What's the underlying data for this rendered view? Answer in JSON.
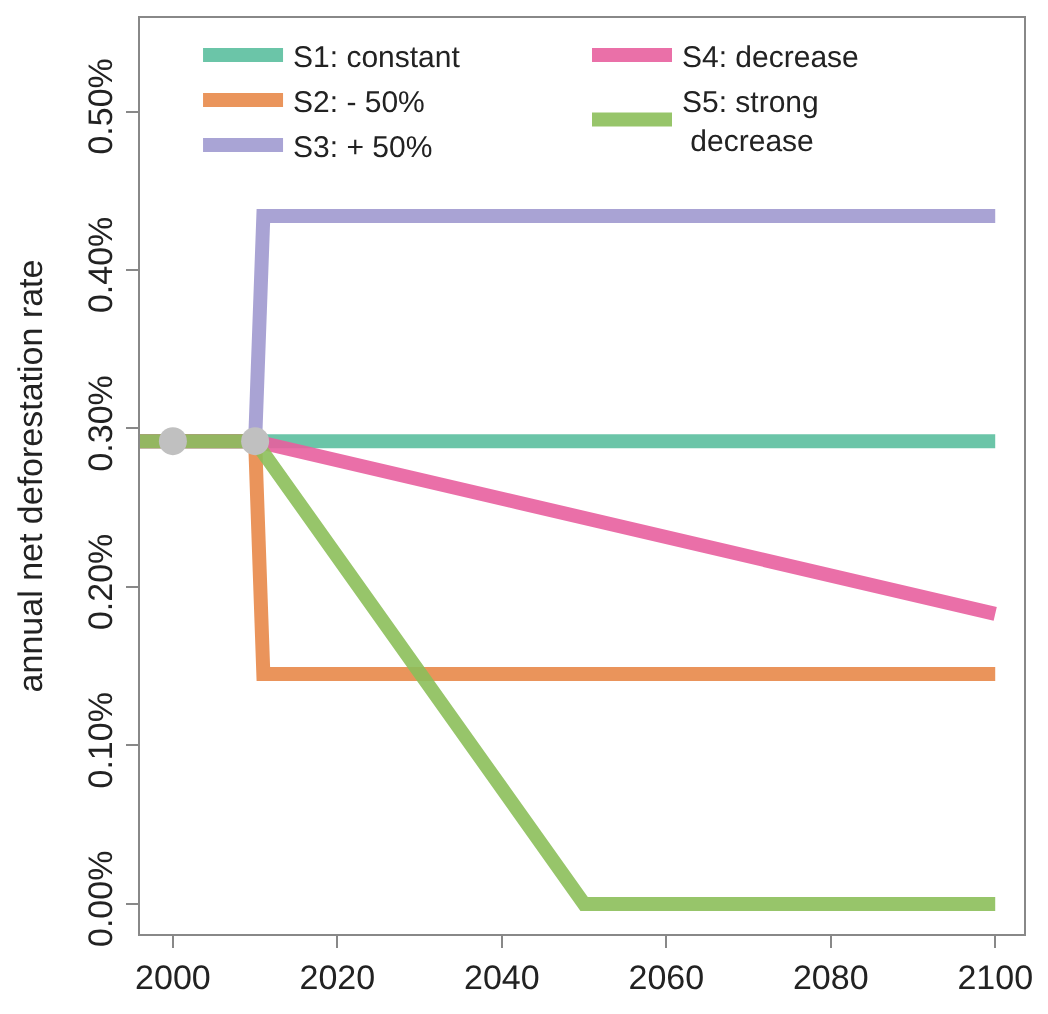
{
  "chart_data": {
    "type": "line",
    "ylabel": "annual net deforestation rate",
    "xlim": [
      1996,
      2103.5
    ],
    "xticks": [
      2000,
      2020,
      2040,
      2060,
      2080,
      2100
    ],
    "ylim": [
      -0.019,
      0.559
    ],
    "yticks": [
      {
        "value": 0,
        "label": "0.00%"
      },
      {
        "value": 0.1,
        "label": "0.10%"
      },
      {
        "value": 0.2,
        "label": "0.20%"
      },
      {
        "value": 0.3,
        "label": "0.30%"
      },
      {
        "value": 0.4,
        "label": "0.40%"
      },
      {
        "value": 0.5,
        "label": "0.50%"
      }
    ],
    "legend": "top",
    "line_style": "solid",
    "series": [
      {
        "name": "S1: constant",
        "color": "#5bbf9f",
        "x": [
          1996,
          2010,
          2100
        ],
        "values": [
          0.292,
          0.292,
          0.292
        ]
      },
      {
        "name": "S2: - 50%",
        "color": "#e8894a",
        "x": [
          1996,
          2010,
          2011,
          2100
        ],
        "values": [
          0.292,
          0.292,
          0.145,
          0.145
        ]
      },
      {
        "name": "S3: + 50%",
        "color": "#a09ad0",
        "x": [
          1996,
          2010,
          2011,
          2100
        ],
        "values": [
          0.292,
          0.292,
          0.434,
          0.434
        ]
      },
      {
        "name": "S4: decrease",
        "color": "#e8609f",
        "x": [
          1996,
          2010,
          2100
        ],
        "values": [
          0.292,
          0.292,
          0.183
        ]
      },
      {
        "name": "S5: strong\n decrease",
        "color": "#8cbf5a",
        "x": [
          1996,
          2010,
          2050,
          2100
        ],
        "values": [
          0.292,
          0.292,
          0,
          0
        ]
      },
      {
        "type": "scatter",
        "marker": "circle",
        "color": "#c0c0c0",
        "x": [
          2000,
          2010
        ],
        "values": [
          0.292,
          0.292
        ]
      }
    ]
  }
}
